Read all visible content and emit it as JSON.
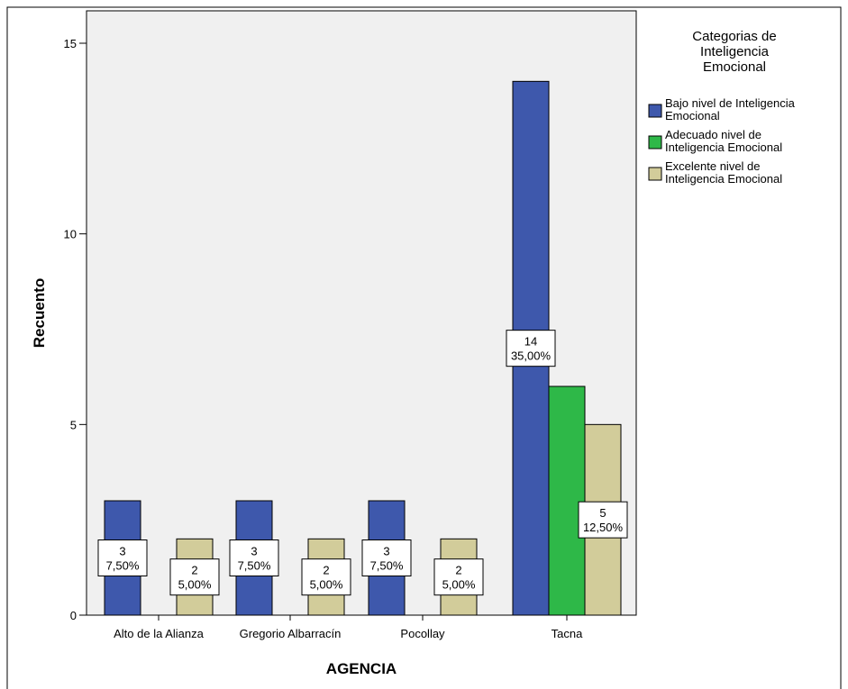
{
  "chart_data": {
    "type": "bar",
    "title": "",
    "xlabel": "AGENCIA",
    "ylabel": "Recuento",
    "ylim": [
      0,
      15
    ],
    "yticks": [
      0,
      5,
      10,
      15
    ],
    "grid": false,
    "legend_position": "right",
    "legend_title": [
      "Categorias de",
      "Inteligencia",
      "Emocional"
    ],
    "categories": [
      "Alto de la Alianza",
      "Gregorio Albarracín",
      "Pocollay",
      "Tacna"
    ],
    "series": [
      {
        "name": "Bajo nivel de Inteligencia Emocional",
        "legend_lines": [
          "Bajo nivel de Inteligencia",
          "Emocional"
        ],
        "color": "#3e58ac",
        "values": [
          3,
          3,
          3,
          14
        ],
        "labels": [
          [
            "3",
            "7,50%"
          ],
          [
            "3",
            "7,50%"
          ],
          [
            "3",
            "7,50%"
          ],
          [
            "14",
            "35,00%"
          ]
        ]
      },
      {
        "name": "Adecuado nivel de Inteligencia Emocional",
        "legend_lines": [
          "Adecuado nivel de",
          "Inteligencia Emocional"
        ],
        "color": "#2eb848",
        "values": [
          0,
          0,
          0,
          6
        ],
        "labels": [
          null,
          null,
          null,
          null
        ]
      },
      {
        "name": "Excelente nivel de Inteligencia Emocional",
        "legend_lines": [
          "Excelente nivel de",
          "Inteligencia Emocional"
        ],
        "color": "#d2cc9a",
        "values": [
          2,
          2,
          2,
          5
        ],
        "labels": [
          [
            "2",
            "5,00%"
          ],
          [
            "2",
            "5,00%"
          ],
          [
            "2",
            "5,00%"
          ],
          [
            "5",
            "12,50%"
          ]
        ]
      }
    ],
    "plot_background": "#f0f0f0"
  }
}
